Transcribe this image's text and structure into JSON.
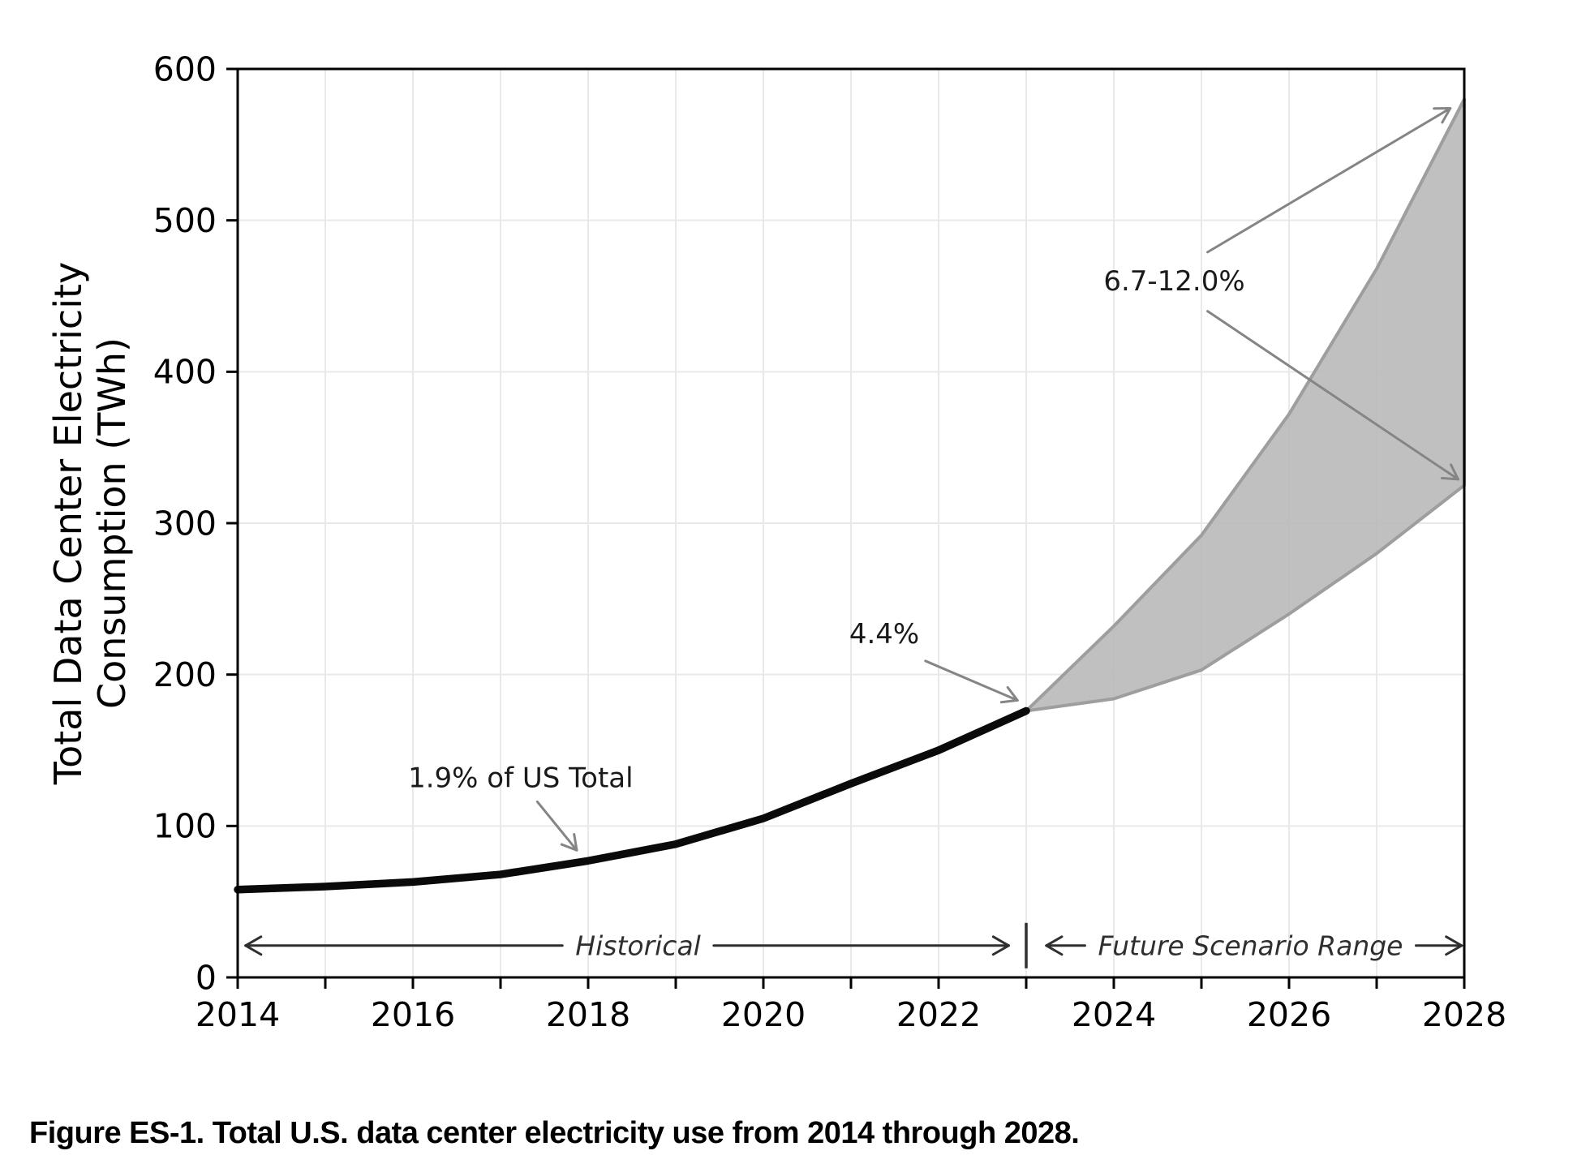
{
  "figure": {
    "caption": "Figure ES-1. Total U.S. data center electricity use from 2014 through 2028."
  },
  "chart_data": {
    "type": "line",
    "title": "",
    "xlabel": "",
    "ylabel_line1": "Total Data Center Electricity",
    "ylabel_line2": "Consumption (TWh)",
    "xlim": [
      2014,
      2028
    ],
    "ylim": [
      0,
      600
    ],
    "xticks": [
      "2014",
      "2016",
      "2018",
      "2020",
      "2022",
      "2024",
      "2026",
      "2028"
    ],
    "yticks": [
      "0",
      "100",
      "200",
      "300",
      "400",
      "500",
      "600"
    ],
    "grid": true,
    "legend": "none",
    "series": [
      {
        "name": "Historical",
        "type": "line",
        "color": "#0a0a0a",
        "x": [
          2014,
          2015,
          2016,
          2017,
          2018,
          2019,
          2020,
          2021,
          2022,
          2023
        ],
        "y": [
          58,
          60,
          63,
          68,
          77,
          88,
          105,
          128,
          150,
          176
        ]
      },
      {
        "name": "Future Scenario Range",
        "type": "band",
        "fill": "#b9b9b9",
        "edge": "#9e9e9e",
        "x": [
          2023,
          2024,
          2025,
          2026,
          2027,
          2028
        ],
        "upper": [
          176,
          232,
          292,
          372,
          468,
          580
        ],
        "lower": [
          176,
          184,
          203,
          240,
          280,
          325
        ]
      }
    ],
    "annotations": [
      {
        "text": "1.9% of US Total",
        "at": [
          2017.23,
          132
        ],
        "arrows": [
          {
            "from": [
              2017.42,
              116
            ],
            "to": [
              2017.87,
              84
            ]
          }
        ]
      },
      {
        "text": "4.4%",
        "at": [
          2021.38,
          227
        ],
        "arrows": [
          {
            "from": [
              2021.85,
              209
            ],
            "to": [
              2022.9,
              183
            ]
          }
        ]
      },
      {
        "text": "6.7-12.0%",
        "at": [
          2024.69,
          460
        ],
        "arrows": [
          {
            "from": [
              2025.07,
              479
            ],
            "to": [
              2027.84,
              574
            ]
          },
          {
            "from": [
              2025.07,
              440
            ],
            "to": [
              2027.93,
              329
            ]
          }
        ]
      }
    ],
    "range_markers": {
      "y": 21,
      "divider_at": 2023,
      "historical": {
        "label": "Historical",
        "from": 2014.09,
        "to": 2022.8,
        "label_at": 2018.57
      },
      "future": {
        "label": "Future Scenario Range",
        "from": 2023.23,
        "to": 2027.97,
        "label_at": 2025.56
      }
    },
    "colors": {
      "grid": "#e9e9e9",
      "axis": "#000000",
      "tick_label": "#000000",
      "annotation_text": "#1a1a1a",
      "annotation_arrow": "#858585",
      "range_marker": "#2f2f2f"
    }
  }
}
